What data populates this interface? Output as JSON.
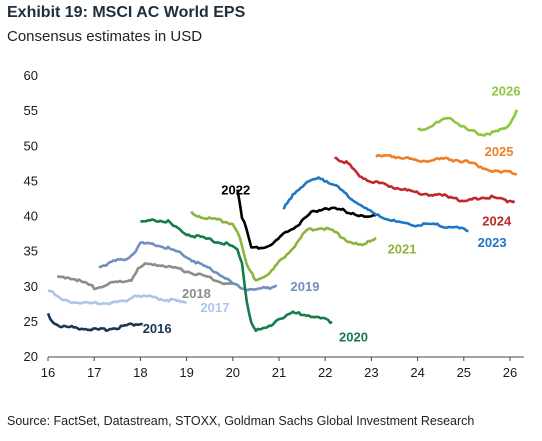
{
  "title": "Exhibit 19: MSCI AC World EPS",
  "subtitle": "Consensus estimates in USD",
  "source": "Source: FactSet, Datastream, STOXX, Goldman Sachs Global Investment Research",
  "chart_data": {
    "type": "line",
    "xlim": [
      16,
      26.3
    ],
    "ylim": [
      20,
      60
    ],
    "xticks": [
      16,
      17,
      18,
      19,
      20,
      21,
      22,
      23,
      24,
      25,
      26
    ],
    "yticks": [
      20,
      25,
      30,
      35,
      40,
      45,
      50,
      55,
      60
    ],
    "grid": false,
    "legend": "none",
    "series": [
      {
        "name": "2016",
        "color": "#1b3556",
        "points": [
          [
            16.0,
            26.2
          ],
          [
            16.1,
            25.0
          ],
          [
            16.3,
            24.3
          ],
          [
            16.6,
            24.2
          ],
          [
            16.9,
            24.0
          ],
          [
            17.1,
            23.8
          ],
          [
            17.3,
            24.0
          ],
          [
            17.5,
            24.2
          ],
          [
            17.7,
            24.5
          ],
          [
            17.9,
            24.7
          ],
          [
            18.05,
            24.7
          ]
        ],
        "label_pos": [
          18.05,
          24
        ]
      },
      {
        "name": "2017",
        "color": "#a9c6e8",
        "points": [
          [
            16.0,
            29.7
          ],
          [
            16.15,
            28.8
          ],
          [
            16.3,
            28.0
          ],
          [
            16.6,
            27.8
          ],
          [
            16.9,
            27.6
          ],
          [
            17.2,
            27.7
          ],
          [
            17.5,
            27.8
          ],
          [
            17.7,
            28.0
          ],
          [
            17.85,
            28.8
          ],
          [
            18.1,
            28.6
          ],
          [
            18.4,
            28.4
          ],
          [
            18.7,
            28.0
          ],
          [
            19.0,
            27.7
          ]
        ],
        "label_pos": [
          19.3,
          27
        ]
      },
      {
        "name": "2018",
        "color": "#8c8c8c",
        "points": [
          [
            16.2,
            31.4
          ],
          [
            16.5,
            31.3
          ],
          [
            16.8,
            30.5
          ],
          [
            17.0,
            29.9
          ],
          [
            17.3,
            30.3
          ],
          [
            17.6,
            30.8
          ],
          [
            17.8,
            31.0
          ],
          [
            17.95,
            32.5
          ],
          [
            18.1,
            33.2
          ],
          [
            18.4,
            33.2
          ],
          [
            18.7,
            32.7
          ],
          [
            19.0,
            32.2
          ],
          [
            19.3,
            31.7
          ],
          [
            19.6,
            31.0
          ],
          [
            19.9,
            30.3
          ],
          [
            20.0,
            30.4
          ]
        ],
        "label_pos": [
          18.9,
          29
        ]
      },
      {
        "name": "2019",
        "color": "#6e8fbf",
        "points": [
          [
            17.1,
            32.9
          ],
          [
            17.3,
            33.3
          ],
          [
            17.5,
            33.7
          ],
          [
            17.7,
            34.0
          ],
          [
            17.85,
            34.8
          ],
          [
            18.0,
            36.2
          ],
          [
            18.3,
            36.0
          ],
          [
            18.6,
            35.5
          ],
          [
            18.9,
            34.7
          ],
          [
            19.2,
            33.5
          ],
          [
            19.5,
            32.6
          ],
          [
            19.8,
            31.5
          ],
          [
            20.0,
            30.5
          ],
          [
            20.2,
            29.8
          ],
          [
            20.5,
            29.6
          ],
          [
            20.8,
            29.9
          ],
          [
            20.95,
            30.2
          ]
        ],
        "label_pos": [
          21.25,
          30
        ]
      },
      {
        "name": "2020",
        "color": "#167a4a",
        "points": [
          [
            18.0,
            39.2
          ],
          [
            18.3,
            39.5
          ],
          [
            18.6,
            39.3
          ],
          [
            18.8,
            38.2
          ],
          [
            19.0,
            37.5
          ],
          [
            19.3,
            37.0
          ],
          [
            19.6,
            36.5
          ],
          [
            19.9,
            36.0
          ],
          [
            20.1,
            35.3
          ],
          [
            20.2,
            33.5
          ],
          [
            20.3,
            28.0
          ],
          [
            20.4,
            25.0
          ],
          [
            20.5,
            23.8
          ],
          [
            20.7,
            24.0
          ],
          [
            21.0,
            25.5
          ],
          [
            21.3,
            26.3
          ],
          [
            21.6,
            26.0
          ],
          [
            21.9,
            25.5
          ],
          [
            22.15,
            25.0
          ]
        ],
        "label_pos": [
          22.3,
          22.8
        ]
      },
      {
        "name": "2021",
        "color": "#8bb43c",
        "points": [
          [
            19.1,
            40.5
          ],
          [
            19.4,
            39.8
          ],
          [
            19.7,
            39.5
          ],
          [
            20.0,
            39.0
          ],
          [
            20.15,
            37.0
          ],
          [
            20.3,
            33.0
          ],
          [
            20.5,
            31.0
          ],
          [
            20.8,
            31.8
          ],
          [
            21.0,
            33.5
          ],
          [
            21.3,
            35.5
          ],
          [
            21.6,
            38.0
          ],
          [
            21.9,
            38.5
          ],
          [
            22.2,
            37.8
          ],
          [
            22.5,
            36.5
          ],
          [
            22.8,
            35.8
          ],
          [
            23.1,
            37.0
          ]
        ],
        "label_pos": [
          23.35,
          35.3
        ]
      },
      {
        "name": "2022",
        "color": "#000000",
        "points": [
          [
            20.1,
            44.0
          ],
          [
            20.2,
            40.0
          ],
          [
            20.3,
            38.0
          ],
          [
            20.4,
            35.5
          ],
          [
            20.6,
            35.6
          ],
          [
            20.9,
            36.2
          ],
          [
            21.1,
            37.5
          ],
          [
            21.4,
            38.8
          ],
          [
            21.7,
            40.5
          ],
          [
            22.0,
            41.2
          ],
          [
            22.3,
            41.0
          ],
          [
            22.6,
            40.5
          ],
          [
            22.9,
            39.8
          ],
          [
            23.1,
            40.1
          ]
        ],
        "label_pos": [
          19.75,
          43.7
        ]
      },
      {
        "name": "2023",
        "color": "#1f77c4",
        "points": [
          [
            21.1,
            41.0
          ],
          [
            21.3,
            43.2
          ],
          [
            21.6,
            44.8
          ],
          [
            21.9,
            45.5
          ],
          [
            22.2,
            44.5
          ],
          [
            22.5,
            42.8
          ],
          [
            22.8,
            41.5
          ],
          [
            23.1,
            40.2
          ],
          [
            23.4,
            39.5
          ],
          [
            23.7,
            39.0
          ],
          [
            24.0,
            38.8
          ],
          [
            24.3,
            38.9
          ],
          [
            24.6,
            38.6
          ],
          [
            24.9,
            38.3
          ],
          [
            25.1,
            37.9
          ]
        ],
        "label_pos": [
          25.3,
          36.2
        ]
      },
      {
        "name": "2024",
        "color": "#c0282e",
        "points": [
          [
            22.2,
            48.5
          ],
          [
            22.5,
            47.5
          ],
          [
            22.7,
            46.0
          ],
          [
            23.0,
            45.0
          ],
          [
            23.3,
            44.5
          ],
          [
            23.6,
            44.0
          ],
          [
            23.9,
            43.5
          ],
          [
            24.2,
            43.2
          ],
          [
            24.5,
            43.0
          ],
          [
            24.8,
            42.8
          ],
          [
            25.0,
            42.0
          ],
          [
            25.3,
            42.6
          ],
          [
            25.6,
            42.8
          ],
          [
            25.9,
            42.3
          ],
          [
            26.1,
            42.2
          ]
        ],
        "label_pos": [
          25.4,
          39.3
        ]
      },
      {
        "name": "2025",
        "color": "#f07e26",
        "points": [
          [
            23.1,
            48.5
          ],
          [
            23.4,
            48.6
          ],
          [
            23.7,
            48.4
          ],
          [
            24.0,
            47.9
          ],
          [
            24.3,
            48.0
          ],
          [
            24.6,
            48.2
          ],
          [
            24.9,
            48.0
          ],
          [
            25.2,
            47.5
          ],
          [
            25.5,
            46.8
          ],
          [
            25.8,
            46.2
          ],
          [
            26.0,
            46.5
          ],
          [
            26.15,
            46.0
          ]
        ],
        "label_pos": [
          25.45,
          49.2
        ]
      },
      {
        "name": "2026",
        "color": "#8ec63f",
        "points": [
          [
            24.0,
            52.3
          ],
          [
            24.2,
            52.7
          ],
          [
            24.5,
            53.5
          ],
          [
            24.7,
            54.1
          ],
          [
            24.9,
            53.2
          ],
          [
            25.1,
            52.2
          ],
          [
            25.4,
            51.7
          ],
          [
            25.7,
            52.0
          ],
          [
            25.9,
            52.6
          ],
          [
            26.05,
            53.8
          ],
          [
            26.15,
            55.2
          ]
        ],
        "label_pos": [
          25.6,
          57.8
        ]
      }
    ]
  }
}
